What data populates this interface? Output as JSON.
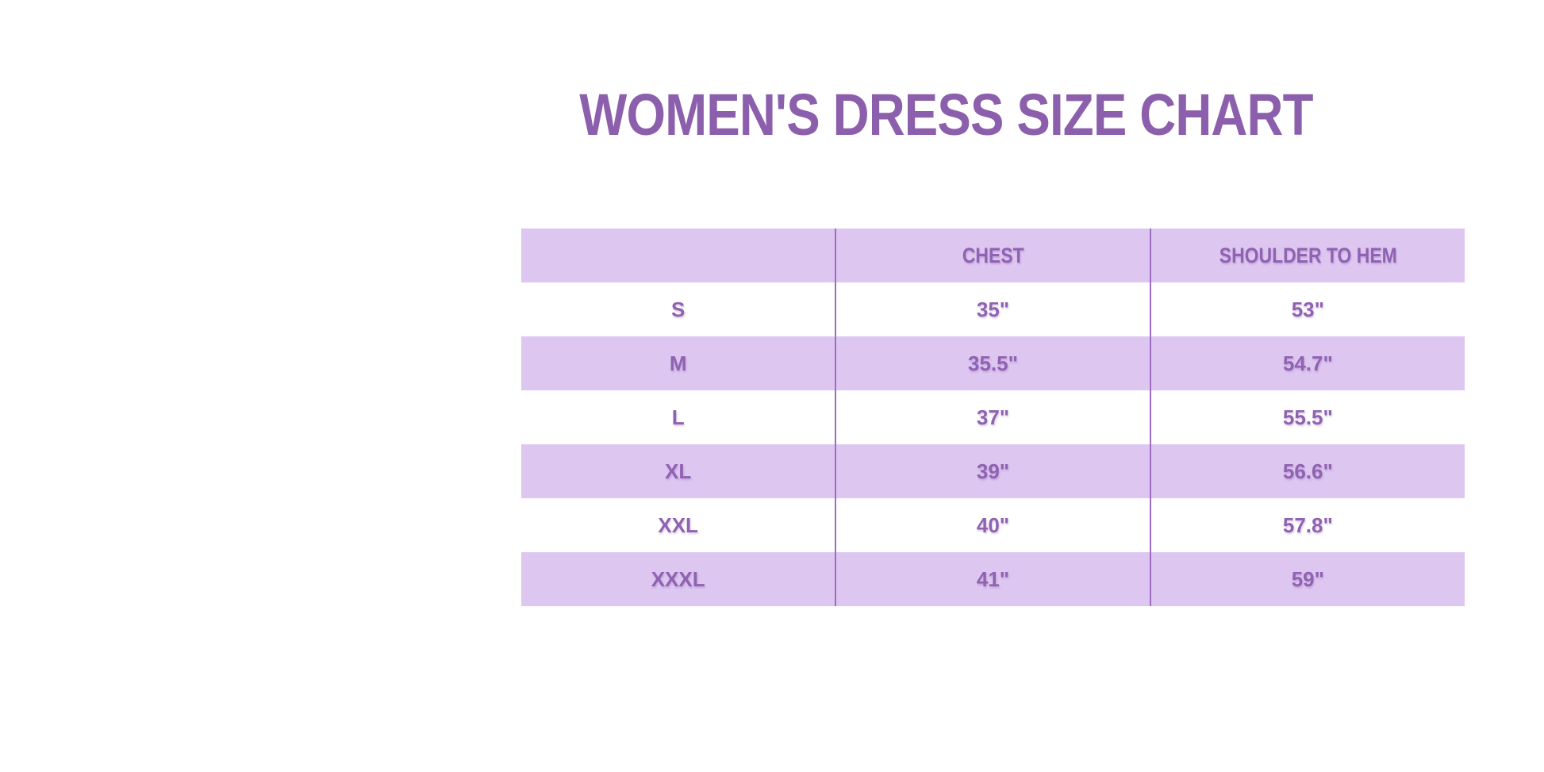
{
  "page": {
    "title": "WOMEN'S DRESS SIZE CHART"
  },
  "colors": {
    "background": "#ffffff",
    "accent_purple_text": "#8c5fad",
    "row_lavender": "#ddc6f0",
    "column_divider_purple": "#9e6cc3"
  },
  "chart_data": {
    "type": "table",
    "title": "WOMEN'S DRESS SIZE CHART",
    "columns": [
      "",
      "CHEST",
      "SHOULDER TO HEM"
    ],
    "layout": {
      "shaded_rows": [
        "header",
        "M",
        "XL",
        "XXXL"
      ],
      "unshaded_rows": [
        "S",
        "L",
        "XXL"
      ],
      "gridlines": "vertical column dividers only"
    },
    "rows": [
      {
        "size": "S",
        "chest": "35\"",
        "shoulder_to_hem": "53\""
      },
      {
        "size": "M",
        "chest": "35.5\"",
        "shoulder_to_hem": "54.7\""
      },
      {
        "size": "L",
        "chest": "37\"",
        "shoulder_to_hem": "55.5\""
      },
      {
        "size": "XL",
        "chest": "39\"",
        "shoulder_to_hem": "56.6\""
      },
      {
        "size": "XXL",
        "chest": "40\"",
        "shoulder_to_hem": "57.8\""
      },
      {
        "size": "XXXL",
        "chest": "41\"",
        "shoulder_to_hem": "59\""
      }
    ]
  }
}
